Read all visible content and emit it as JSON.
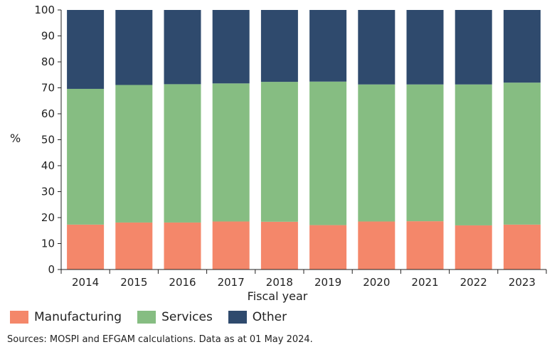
{
  "chart_data": {
    "type": "bar",
    "stacked": true,
    "categories": [
      "2014",
      "2015",
      "2016",
      "2017",
      "2018",
      "2019",
      "2020",
      "2021",
      "2022",
      "2023"
    ],
    "series": [
      {
        "name": "Manufacturing",
        "color": "#f4876a",
        "values": [
          17.3,
          18.1,
          18.1,
          18.5,
          18.4,
          17.1,
          18.5,
          18.6,
          17.0,
          17.3
        ]
      },
      {
        "name": "Services",
        "color": "#86bd82",
        "values": [
          52.3,
          53.0,
          53.3,
          53.2,
          53.9,
          55.3,
          52.8,
          52.7,
          54.3,
          54.7
        ]
      },
      {
        "name": "Other",
        "color": "#2f4a6d",
        "values": [
          30.4,
          28.9,
          28.6,
          28.3,
          27.7,
          27.6,
          28.7,
          28.7,
          28.7,
          28.0
        ]
      }
    ],
    "xlabel": "Fiscal year",
    "ylabel": "%",
    "ylim": [
      0,
      100
    ],
    "yticks": [
      "0",
      "10",
      "20",
      "30",
      "40",
      "50",
      "60",
      "70",
      "80",
      "90",
      "100"
    ],
    "grid": false,
    "legend_position": "bottom-left"
  },
  "source_text": "Sources: MOSPI and EFGAM calculations. Data as at 01 May 2024."
}
